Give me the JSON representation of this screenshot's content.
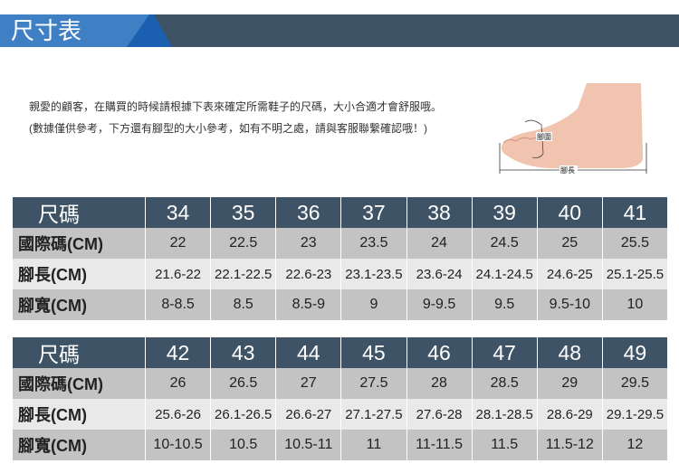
{
  "header": {
    "title": "尺寸表"
  },
  "intro": "親愛的顧客，在購買的時候請根據下表來確定所需鞋子的尺碼，大小合適才會舒服哦。 (數據僅供參考，下方還有腳型的大小參考，如有不明之處，請與客服聯繫確認哦！)",
  "foot_image": {
    "girth_label": "腳圍",
    "length_label": "腳長"
  },
  "tables": [
    {
      "rows": [
        {
          "label": "尺碼",
          "cells": [
            "34",
            "35",
            "36",
            "37",
            "38",
            "39",
            "40",
            "41"
          ]
        },
        {
          "label": "國際碼(CM)",
          "cells": [
            "22",
            "22.5",
            "23",
            "23.5",
            "24",
            "24.5",
            "25",
            "25.5"
          ]
        },
        {
          "label": "腳長(CM)",
          "cells": [
            "21.6-22",
            "22.1-22.5",
            "22.6-23",
            "23.1-23.5",
            "23.6-24",
            "24.1-24.5",
            "24.6-25",
            "25.1-25.5"
          ]
        },
        {
          "label": "腳寬(CM)",
          "cells": [
            "8-8.5",
            "8.5",
            "8.5-9",
            "9",
            "9-9.5",
            "9.5",
            "9.5-10",
            "10"
          ]
        }
      ]
    },
    {
      "rows": [
        {
          "label": "尺碼",
          "cells": [
            "42",
            "43",
            "44",
            "45",
            "46",
            "47",
            "48",
            "49"
          ]
        },
        {
          "label": "國際碼(CM)",
          "cells": [
            "26",
            "26.5",
            "27",
            "27.5",
            "28",
            "28.5",
            "29",
            "29.5"
          ]
        },
        {
          "label": "腳長(CM)",
          "cells": [
            "25.6-26",
            "26.1-26.5",
            "26.6-27",
            "27.1-27.5",
            "27.6-28",
            "28.1-28.5",
            "28.6-29",
            "29.1-29.5"
          ]
        },
        {
          "label": "腳寬(CM)",
          "cells": [
            "10-10.5",
            "10.5",
            "10.5-11",
            "11",
            "11-11.5",
            "11.5",
            "11.5-12",
            "12"
          ]
        }
      ]
    }
  ]
}
